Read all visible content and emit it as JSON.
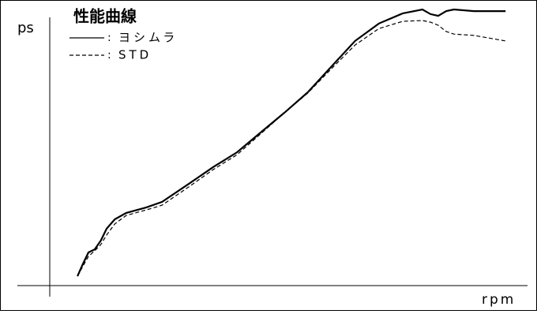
{
  "chart_data": {
    "type": "line",
    "title": "性能曲線",
    "y_label": "ps",
    "x_label": "rpm",
    "x": [
      5.8,
      6.9,
      8.1,
      9.4,
      10.7,
      11.9,
      13.6,
      16.0,
      20.2,
      23.5,
      29.3,
      34.2,
      39.2,
      44.1,
      49.1,
      54.0,
      59.0,
      63.9,
      68.9,
      73.9,
      78.0,
      79.7,
      81.3,
      83.0,
      84.6,
      88.8,
      95.4
    ],
    "series": [
      {
        "name": "ヨシムラ",
        "color": "#000000",
        "style": "solid",
        "values": [
          3.4,
          7.7,
          12.0,
          13.1,
          16.3,
          20.6,
          24.0,
          26.3,
          28.3,
          30.3,
          37.1,
          42.9,
          48.3,
          55.4,
          62.6,
          70.0,
          79.4,
          88.6,
          94.9,
          98.6,
          100,
          98.3,
          97.7,
          99.4,
          100,
          99.4,
          99.4
        ]
      },
      {
        "name": "STD",
        "color": "#000000",
        "style": "dashed",
        "values": [
          3.4,
          6.9,
          10.6,
          12.6,
          14.9,
          18.3,
          22.3,
          25.4,
          27.4,
          29.1,
          36.0,
          42.0,
          47.4,
          54.9,
          62.6,
          69.7,
          78.6,
          87.1,
          93.1,
          95.7,
          96.0,
          95.4,
          94.3,
          92.0,
          91.1,
          90.6,
          88.6
        ]
      }
    ],
    "xlim": [
      0,
      100
    ],
    "ylim": [
      0,
      100
    ]
  }
}
